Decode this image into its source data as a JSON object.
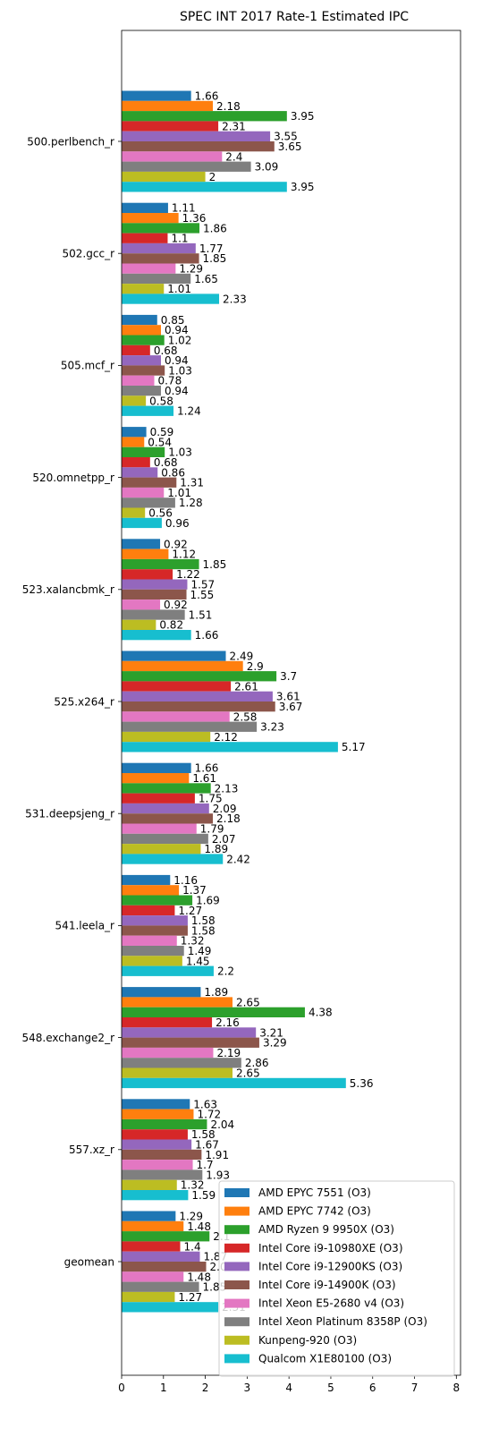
{
  "chart_data": {
    "type": "bar",
    "orientation": "horizontal",
    "title": "SPEC INT 2017 Rate-1 Estimated IPC",
    "xlabel": "",
    "ylabel": "",
    "xlim": [
      0,
      8.1
    ],
    "xticks": [
      0,
      1,
      2,
      3,
      4,
      5,
      6,
      7,
      8
    ],
    "grid": false,
    "legend_position": "lower-right",
    "categories": [
      "500.perlbench_r",
      "502.gcc_r",
      "505.mcf_r",
      "520.omnetpp_r",
      "523.xalancbmk_r",
      "525.x264_r",
      "531.deepsjeng_r",
      "541.leela_r",
      "548.exchange2_r",
      "557.xz_r",
      "geomean"
    ],
    "series": [
      {
        "name": "AMD EPYC 7551 (O3)",
        "color": "#1f77b4",
        "values": [
          1.66,
          1.11,
          0.85,
          0.59,
          0.92,
          2.49,
          1.66,
          1.16,
          1.89,
          1.63,
          1.29
        ]
      },
      {
        "name": "AMD EPYC 7742 (O3)",
        "color": "#ff7f0e",
        "values": [
          2.18,
          1.36,
          0.94,
          0.54,
          1.12,
          2.9,
          1.61,
          1.37,
          2.65,
          1.72,
          1.48
        ]
      },
      {
        "name": "AMD Ryzen 9 9950X (O3)",
        "color": "#2ca02c",
        "values": [
          3.95,
          1.86,
          1.02,
          1.03,
          1.85,
          3.7,
          2.13,
          1.69,
          4.38,
          2.04,
          2.1
        ]
      },
      {
        "name": "Intel Core i9-10980XE (O3)",
        "color": "#d62728",
        "values": [
          2.31,
          1.1,
          0.68,
          0.68,
          1.22,
          2.61,
          1.75,
          1.27,
          2.16,
          1.58,
          1.4
        ]
      },
      {
        "name": "Intel Core i9-12900KS (O3)",
        "color": "#9467bd",
        "values": [
          3.55,
          1.77,
          0.94,
          0.86,
          1.57,
          3.61,
          2.09,
          1.58,
          3.21,
          1.67,
          1.87
        ]
      },
      {
        "name": "Intel Core i9-14900K (O3)",
        "color": "#8c564b",
        "values": [
          3.65,
          1.85,
          1.03,
          1.31,
          1.55,
          3.67,
          2.18,
          1.58,
          3.29,
          1.91,
          2.02
        ]
      },
      {
        "name": "Intel Xeon E5-2680 v4 (O3)",
        "color": "#e377c2",
        "values": [
          2.4,
          1.29,
          0.78,
          1.01,
          0.92,
          2.58,
          1.79,
          1.32,
          2.19,
          1.7,
          1.48
        ]
      },
      {
        "name": "Intel Xeon Platinum 8358P (O3)",
        "color": "#7f7f7f",
        "values": [
          3.09,
          1.65,
          0.94,
          1.28,
          1.51,
          3.23,
          2.07,
          1.49,
          2.86,
          1.93,
          1.85
        ]
      },
      {
        "name": "Kunpeng-920 (O3)",
        "color": "#bcbd22",
        "values": [
          2,
          1.01,
          0.58,
          0.56,
          0.82,
          2.12,
          1.89,
          1.45,
          2.65,
          1.32,
          1.27
        ]
      },
      {
        "name": "Qualcom X1E80100 (O3)",
        "color": "#17becf",
        "values": [
          3.95,
          2.33,
          1.24,
          0.96,
          1.66,
          5.17,
          2.42,
          2.2,
          5.36,
          1.59,
          2.31
        ]
      }
    ]
  }
}
